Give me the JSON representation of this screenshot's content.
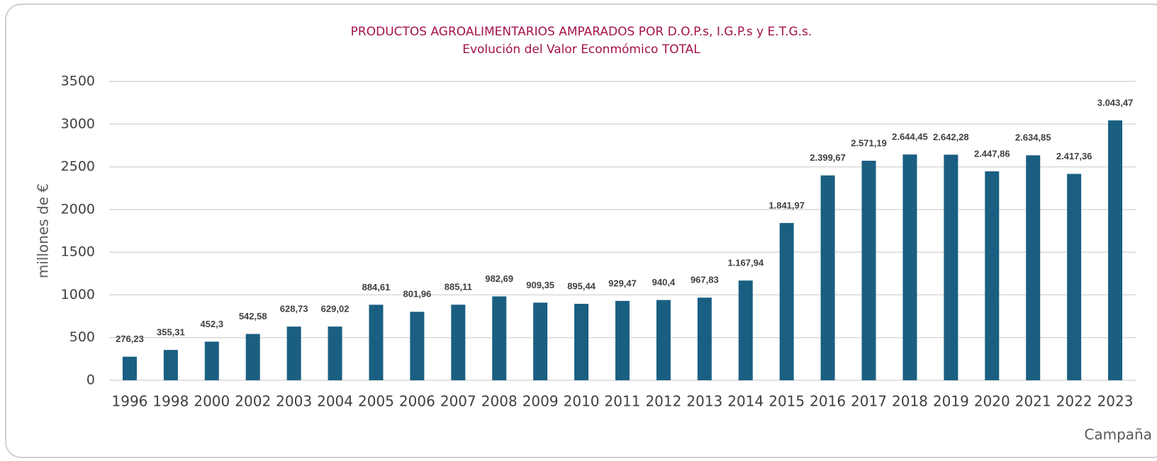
{
  "chart_data": {
    "type": "bar",
    "title": "PRODUCTOS AGROALIMENTARIOS AMPARADOS POR D.O.P.s, I.G.P.s y E.T.G.s.",
    "subtitle": "Evolución del Valor Econmómico TOTAL",
    "y_label": "millones de €",
    "x_label": "Campaña",
    "categories": [
      "1996",
      "1998",
      "2000",
      "2002",
      "2003",
      "2004",
      "2005",
      "2006",
      "2007",
      "2008",
      "2009",
      "2010",
      "2011",
      "2012",
      "2013",
      "2014",
      "2015",
      "2016",
      "2017",
      "2018",
      "2019",
      "2020",
      "2021",
      "2022",
      "2023"
    ],
    "values": [
      276.23,
      355.31,
      452.3,
      542.58,
      628.73,
      629.02,
      884.61,
      801.96,
      885.11,
      982.69,
      909.35,
      895.44,
      929.47,
      940.4,
      967.83,
      1167.94,
      1841.97,
      2399.67,
      2571.19,
      2644.45,
      2642.28,
      2447.86,
      2634.85,
      2417.36,
      3043.47
    ],
    "value_labels": [
      "276,23",
      "355,31",
      "452,3",
      "542,58",
      "628,73",
      "629,02",
      "884,61",
      "801,96",
      "885,11",
      "982,69",
      "909,35",
      "895,44",
      "929,47",
      "940,4",
      "967,83",
      "1.167,94",
      "1.841,97",
      "2.399,67",
      "2.571,19",
      "2.644,45",
      "2.642,28",
      "2.447,86",
      "2.634,85",
      "2.417,36",
      "3.043,47"
    ],
    "color": "#1a5f82",
    "ylim": [
      0,
      3500
    ],
    "yticks": [
      0,
      500,
      1000,
      1500,
      2000,
      2500,
      3000,
      3500
    ],
    "grid": true
  }
}
